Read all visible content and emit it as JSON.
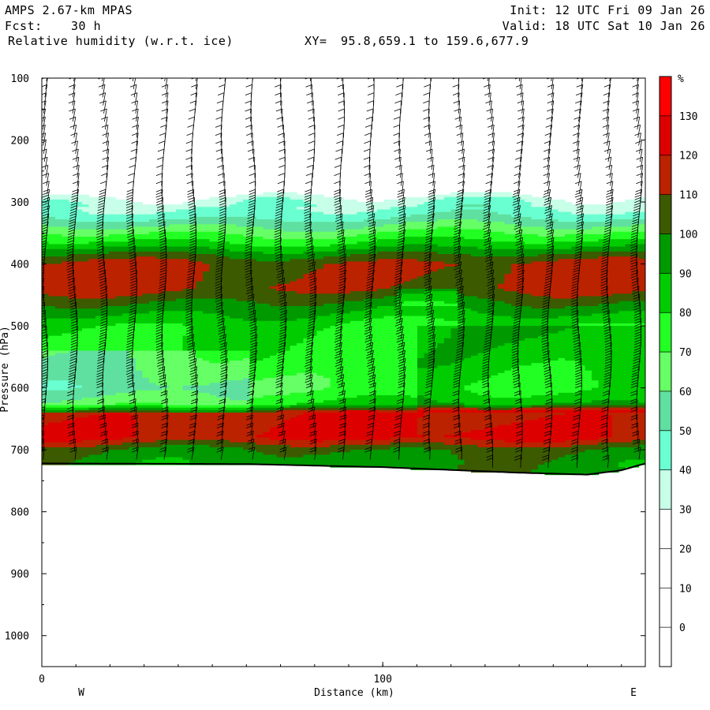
{
  "header": {
    "model": "AMPS 2.67-km MPAS",
    "forecast_label": "Fcst:",
    "forecast_value": "30 h",
    "field": "Relative humidity (w.r.t. ice)",
    "xy_label": "XY=",
    "xy_value": "95.8,659.1 to 159.6,677.9",
    "init": "Init: 12 UTC Fri 09 Jan 26",
    "valid": "Valid: 18 UTC Sat 10 Jan 26"
  },
  "chart_data": {
    "type": "heatmap",
    "title": "Relative humidity (w.r.t. ice)",
    "xlabel": "Distance (km)",
    "ylabel": "Pressure (hPa)",
    "xlim": [
      0,
      177
    ],
    "ylim": [
      1050,
      100
    ],
    "x_ticks": [
      0,
      100
    ],
    "y_ticks": [
      100,
      200,
      300,
      400,
      500,
      600,
      700,
      800,
      900,
      1000
    ],
    "left_label": "W",
    "right_label": "E",
    "colorbar": {
      "unit": "%",
      "tick_labels": [
        130,
        120,
        110,
        100,
        90,
        80,
        70,
        60,
        50,
        40,
        30,
        20,
        10,
        0
      ],
      "levels": [
        -10,
        0,
        10,
        20,
        30,
        40,
        50,
        60,
        70,
        80,
        90,
        100,
        110,
        120,
        130,
        140
      ],
      "colors": [
        "#ffffff",
        "#ffffff",
        "#ffffff",
        "#ffffff",
        "#c8ffe8",
        "#6affd0",
        "#5fe0a0",
        "#66ff66",
        "#22ff22",
        "#00cc00",
        "#009900",
        "#3c5a00",
        "#bb2200",
        "#dd0000",
        "#ff0000"
      ]
    },
    "rh_profile": [
      {
        "p": 100,
        "rh": 5
      },
      {
        "p": 280,
        "rh": 15
      },
      {
        "p": 295,
        "rh": 35
      },
      {
        "p": 320,
        "rh": 45
      },
      {
        "p": 345,
        "rh": 65
      },
      {
        "p": 370,
        "rh": 85
      },
      {
        "p": 385,
        "rh": 100
      },
      {
        "p": 400,
        "rh": 112
      },
      {
        "p": 440,
        "rh": 112
      },
      {
        "p": 460,
        "rh": 100
      },
      {
        "p": 480,
        "rh": 90
      },
      {
        "p": 500,
        "rh": 80
      },
      {
        "p": 560,
        "rh": 75
      },
      {
        "p": 600,
        "rh": 68
      },
      {
        "p": 625,
        "rh": 78
      },
      {
        "p": 640,
        "rh": 118
      },
      {
        "p": 680,
        "rh": 122
      },
      {
        "p": 700,
        "rh": 100
      },
      {
        "p": 720,
        "rh": 95
      }
    ],
    "terrain_surface": [
      {
        "x": 0,
        "p": 722
      },
      {
        "x": 60,
        "p": 723
      },
      {
        "x": 100,
        "p": 728
      },
      {
        "x": 140,
        "p": 737
      },
      {
        "x": 160,
        "p": 740
      },
      {
        "x": 170,
        "p": 733
      },
      {
        "x": 177,
        "p": 722
      }
    ],
    "wind_barb_columns": 21
  }
}
